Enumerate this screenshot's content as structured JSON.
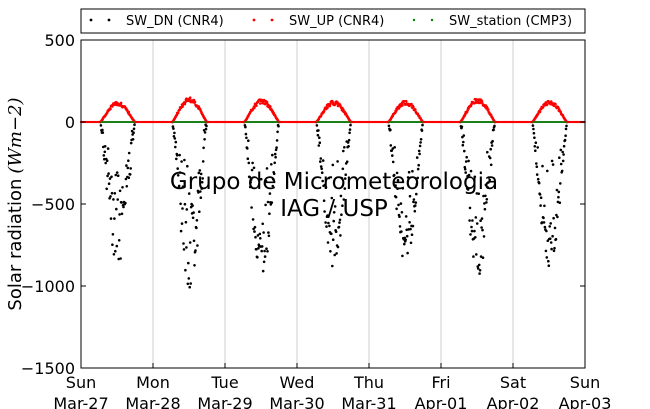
{
  "chart_data": {
    "type": "scatter",
    "title": "",
    "xlabel": "",
    "ylabel": "Solar radiation",
    "ylabel_unit": "(Wm−2)",
    "ylim": [
      -1500,
      500
    ],
    "yticks": [
      500,
      0,
      -500,
      -1000,
      -1500
    ],
    "ytick_labels": [
      "500",
      "0",
      "−500",
      "−1000",
      "−1500"
    ],
    "xlim_days": [
      0,
      7
    ],
    "xticks": [
      {
        "day": 0,
        "weekday": "Sun",
        "date": "Mar-27"
      },
      {
        "day": 1,
        "weekday": "Mon",
        "date": "Mar-28"
      },
      {
        "day": 2,
        "weekday": "Tue",
        "date": "Mar-29"
      },
      {
        "day": 3,
        "weekday": "Wed",
        "date": "Mar-30"
      },
      {
        "day": 4,
        "weekday": "Thu",
        "date": "Mar-31"
      },
      {
        "day": 5,
        "weekday": "Fri",
        "date": "Apr-01"
      },
      {
        "day": 6,
        "weekday": "Sat",
        "date": "Apr-02"
      },
      {
        "day": 7,
        "weekday": "Sun",
        "date": "Apr-03"
      }
    ],
    "grid": "vertical",
    "legend_position": "top",
    "series": [
      {
        "name": "SW_DN (CNR4)",
        "color": "#000000",
        "daily_minimum": [
          -870,
          -1040,
          -950,
          -890,
          -870,
          -960,
          -880
        ]
      },
      {
        "name": "SW_UP (CNR4)",
        "color": "#ff0000",
        "daily_maximum": [
          125,
          150,
          140,
          130,
          130,
          145,
          130
        ]
      },
      {
        "name": "SW_station (CMP3)",
        "color": "#008000",
        "daily_maximum": [
          0,
          0,
          0,
          0,
          0,
          0,
          0
        ]
      }
    ],
    "watermark": [
      "Grupo de Micrometeorologia",
      "IAG / USP"
    ]
  }
}
